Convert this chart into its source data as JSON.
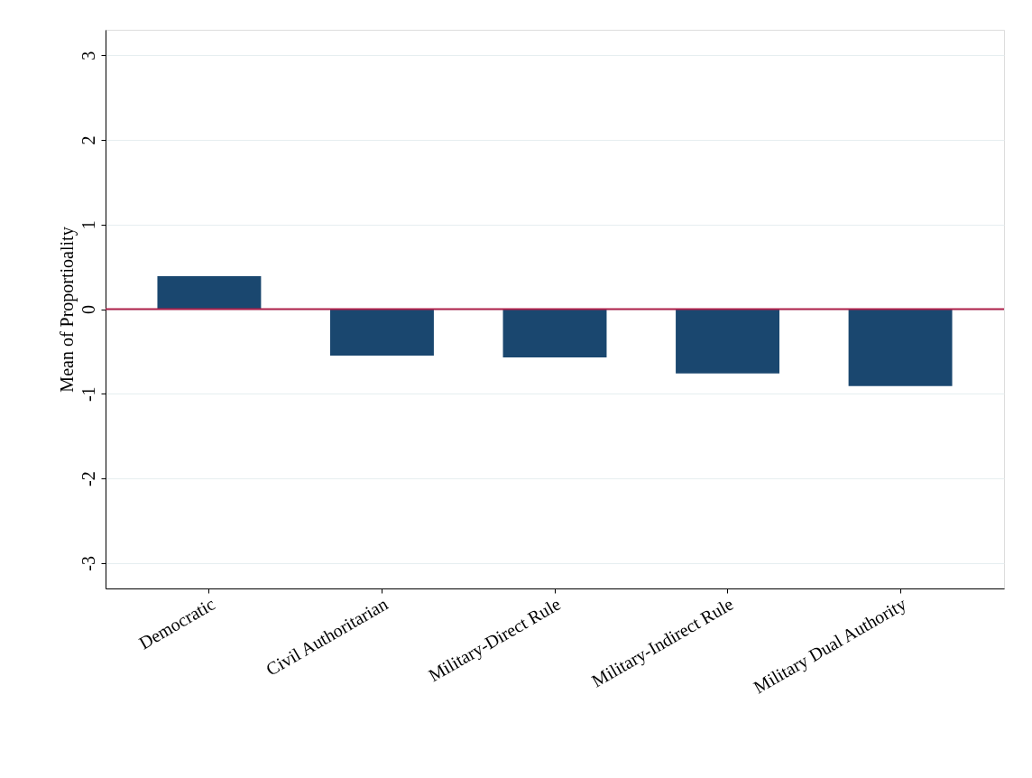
{
  "chart_data": {
    "type": "bar",
    "ylabel": "Mean of Proportioality",
    "categories": [
      "Democratic",
      "Civil Authoritarian",
      "Military-Direct Rule",
      "Military-Indirect Rule",
      "Military Dual Authority"
    ],
    "values": [
      0.39,
      -0.55,
      -0.57,
      -0.76,
      -0.91
    ],
    "color": "#1a476f",
    "ylim": [
      -3.3,
      3.3
    ],
    "yticks": [
      -3,
      -2,
      -1,
      0,
      1,
      2,
      3
    ],
    "grid": "y",
    "ref_lines": [
      {
        "axis": "y",
        "value": 0,
        "color": "#b0204a"
      }
    ]
  }
}
